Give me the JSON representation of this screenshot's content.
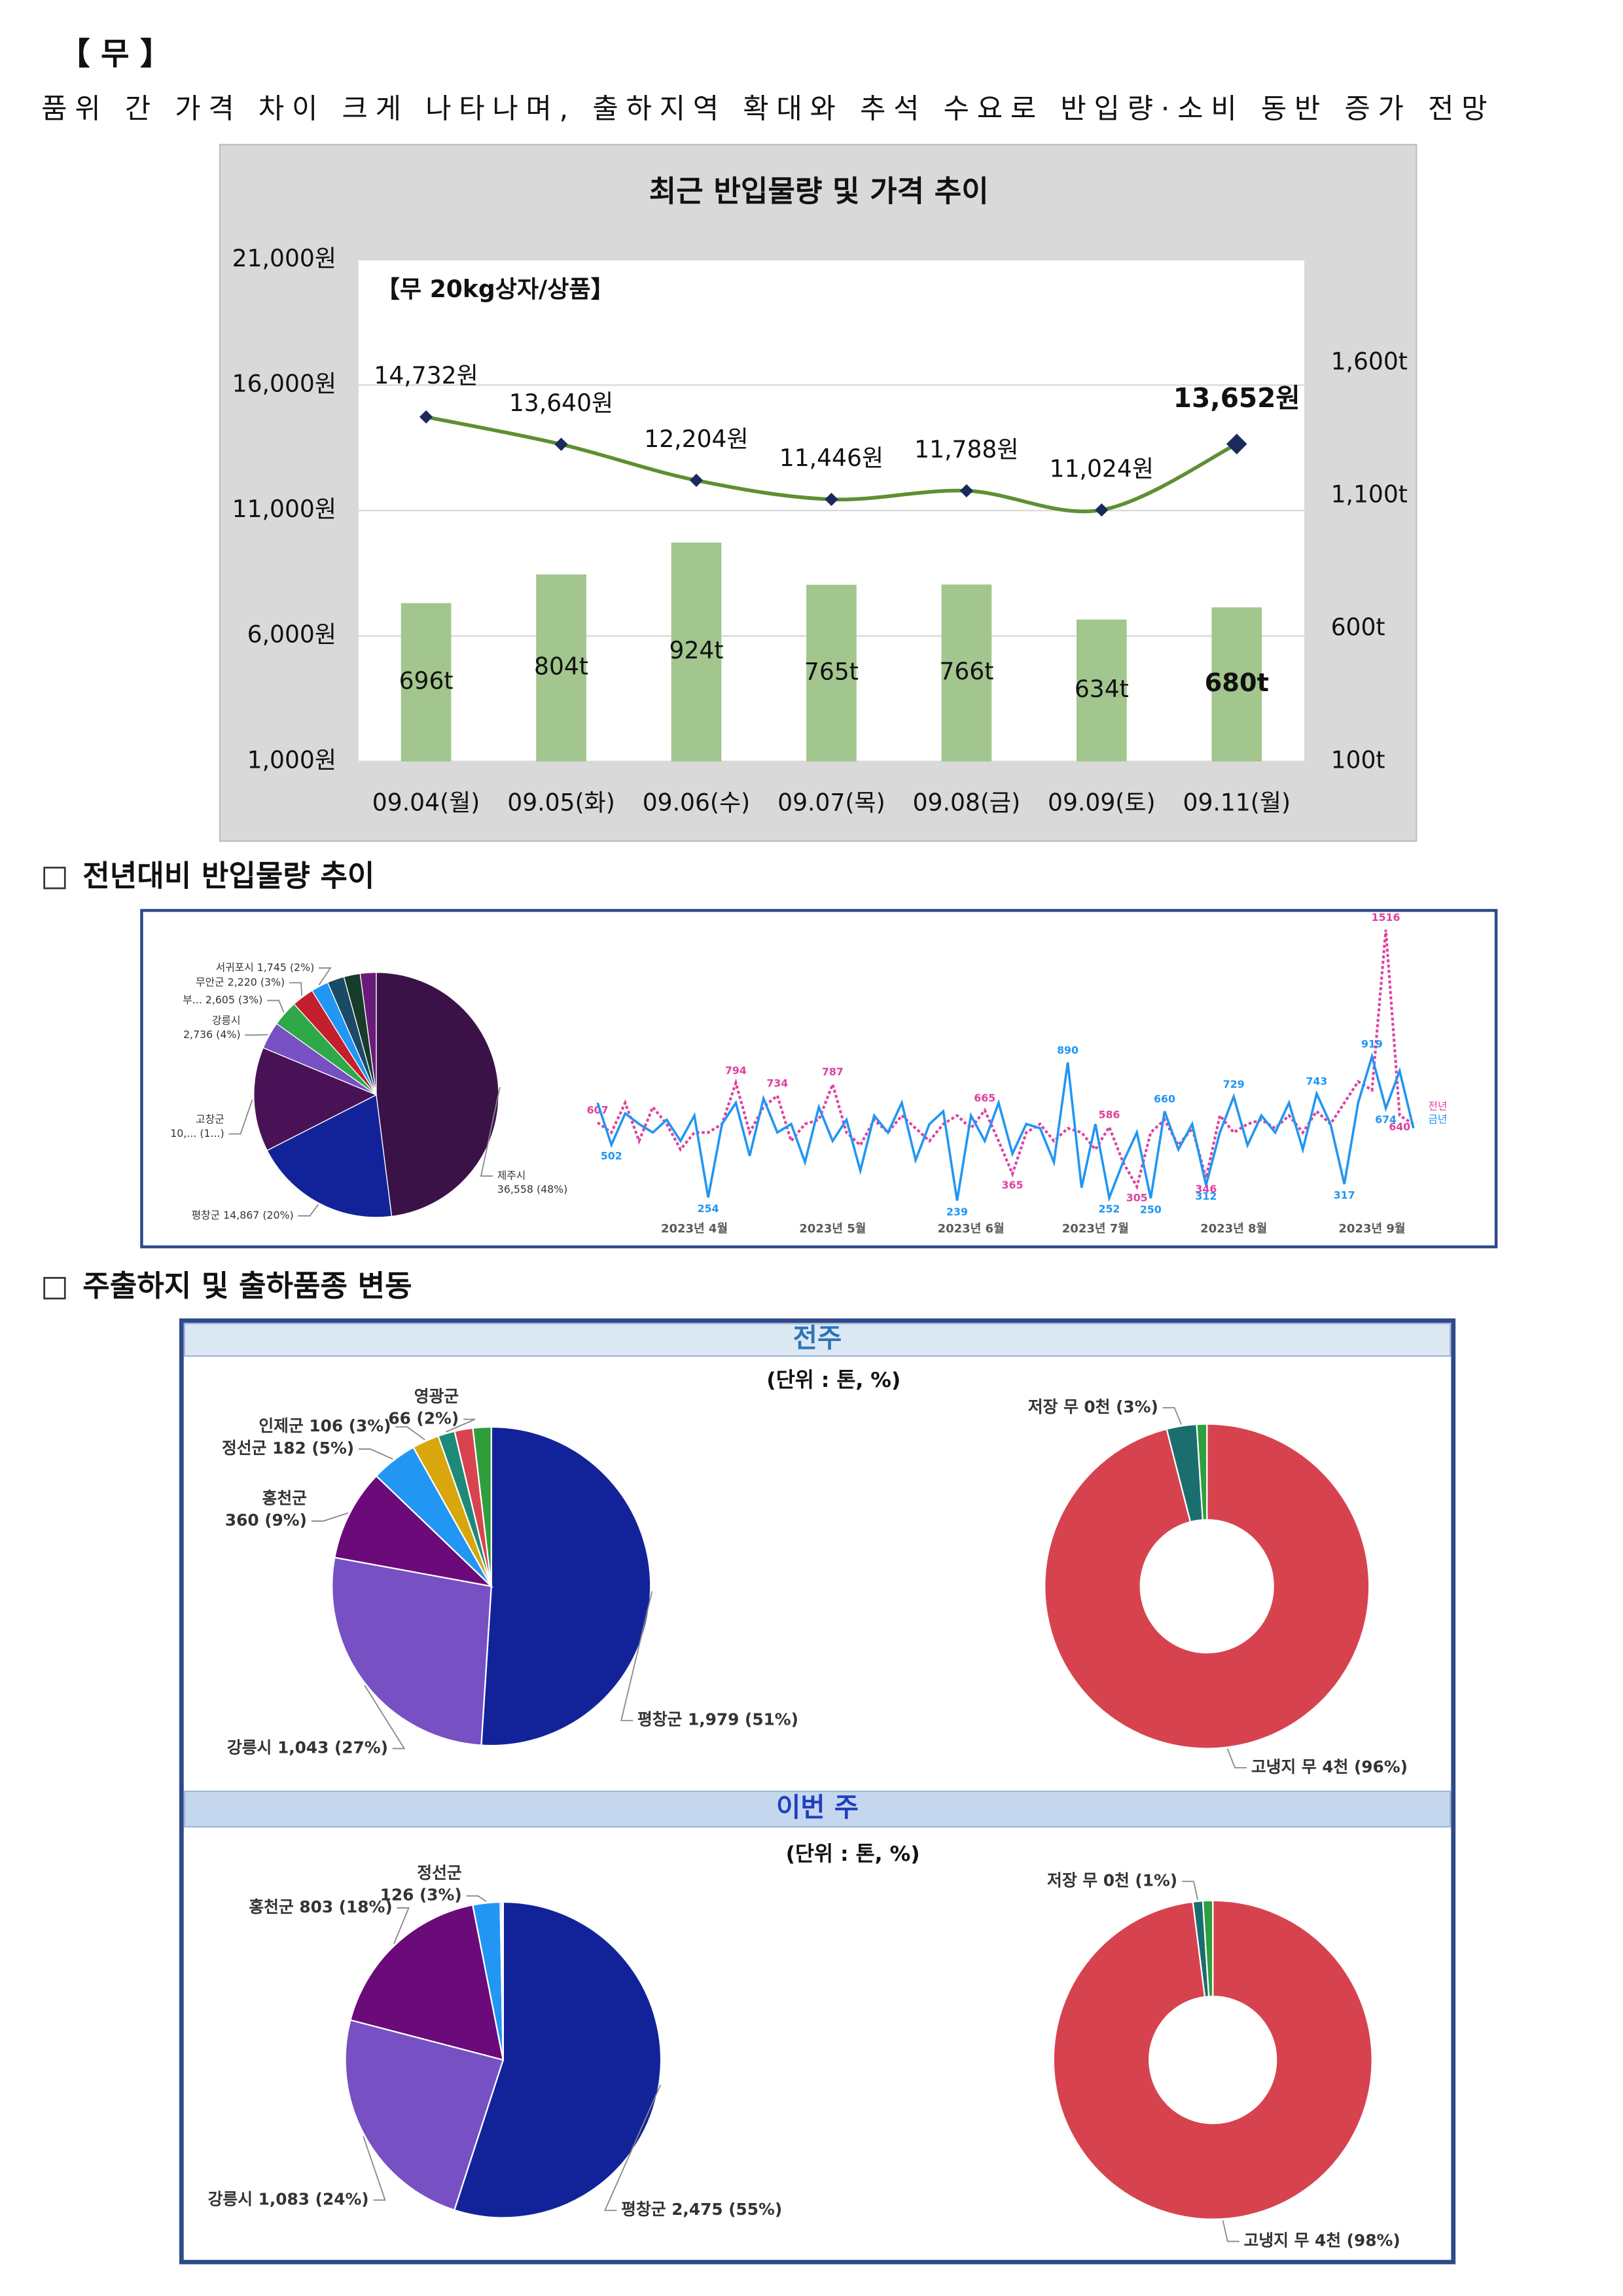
{
  "header": {
    "title": "【 무 】",
    "subtitle": "품위 간 가격 차이 크게 나타나며, 출하지역 확대와 추석 수요로 반입량·소비 동반 증가 전망"
  },
  "sections": [
    "전년대비 반입물량 추이",
    "주출하지 및 출하품종 변동"
  ],
  "panels": [
    {
      "title": "전주",
      "unit": "(단위 : 톤, %)"
    },
    {
      "title": "이번 주",
      "unit": "(단위 : 톤, %)"
    }
  ],
  "chart_data": [
    {
      "type": "combo",
      "title": "최근 반입물량 및 가격 추이",
      "annotation": "【무 20kg상자/상품】",
      "categories": [
        "09.04(월)",
        "09.05(화)",
        "09.06(수)",
        "09.07(목)",
        "09.08(금)",
        "09.09(토)",
        "09.11(월)"
      ],
      "series": [
        {
          "type": "bar",
          "axis": "y2",
          "color": "#a2c68e",
          "values": [
            696,
            804,
            924,
            765,
            766,
            634,
            680
          ],
          "value_labels": [
            "696t",
            "804t",
            "924t",
            "765t",
            "766t",
            "634t",
            "680t"
          ]
        },
        {
          "type": "line",
          "color": "#5e8f32",
          "marker_color": "#1b2a5c",
          "values": [
            14732,
            13640,
            12204,
            11446,
            11788,
            11024,
            13652
          ],
          "value_labels": [
            "14,732원",
            "13,640원",
            "12,204원",
            "11,446원",
            "11,788원",
            "11,024원",
            "13,652원"
          ]
        }
      ],
      "ylim": [
        1000,
        21000
      ],
      "yticks": [
        {
          "value": 1000,
          "label": "1,000원"
        },
        {
          "value": 6000,
          "label": "6,000원"
        },
        {
          "value": 11000,
          "label": "11,000원"
        },
        {
          "value": 16000,
          "label": "16,000원"
        },
        {
          "value": 21000,
          "label": "21,000원"
        }
      ],
      "y2lim": [
        100,
        1989
      ],
      "y2ticks": [
        {
          "value": 100,
          "label": "100t"
        },
        {
          "value": 600,
          "label": "600t"
        },
        {
          "value": 1100,
          "label": "1,100t"
        },
        {
          "value": 1600,
          "label": "1,600t"
        }
      ],
      "grid": true,
      "emphasize_last": true
    },
    {
      "type": "pie",
      "labels": [
        [
          "제주시",
          "36,558 (48%)"
        ],
        [
          "평창군 14,867 (20%)"
        ],
        [
          "고창군",
          "10,... (1...)"
        ],
        [
          "강릉시",
          "2,736 (4%)"
        ],
        [
          "부... 2,605 (3%)"
        ],
        [
          "무안군 2,220 (3%)"
        ],
        [
          "서귀포시 1,745 (2%)"
        ],
        null,
        null,
        null
      ],
      "values": [
        36558,
        14867,
        10500,
        2736,
        2605,
        2220,
        1745,
        1700,
        1650,
        1600
      ],
      "colors": [
        "#3b1248",
        "#12239a",
        "#4a1256",
        "#7750c4",
        "#2fa84a",
        "#c41f2c",
        "#2196f3",
        "#1b4a66",
        "#173d2a",
        "#6a1b7a"
      ]
    },
    {
      "type": "line",
      "categories": [
        null,
        null,
        null,
        null,
        null,
        null,
        null,
        "2023년 4월",
        null,
        null,
        null,
        null,
        null,
        null,
        null,
        null,
        null,
        "2023년 5월",
        null,
        null,
        null,
        null,
        null,
        null,
        null,
        null,
        null,
        "2023년 6월",
        null,
        null,
        null,
        null,
        null,
        null,
        null,
        null,
        "2023년 7월",
        null,
        null,
        null,
        null,
        null,
        null,
        null,
        null,
        null,
        "2023년 8월",
        null,
        null,
        null,
        null,
        null,
        null,
        null,
        null,
        null,
        "2023년 9월",
        null,
        null,
        null
      ],
      "series": [
        {
          "name": "전년",
          "color": "#e0409f",
          "dash": true,
          "values": [
            607,
            560,
            700,
            520,
            680,
            600,
            480,
            560,
            560,
            600,
            794,
            560,
            680,
            734,
            520,
            600,
            620,
            787,
            560,
            500,
            620,
            560,
            640,
            580,
            520,
            600,
            640,
            580,
            665,
            520,
            365,
            560,
            600,
            520,
            580,
            560,
            480,
            586,
            420,
            305,
            560,
            620,
            500,
            580,
            346,
            640,
            560,
            600,
            620,
            580,
            640,
            560,
            660,
            600,
            700,
            800,
            760,
            1516,
            640,
            600
          ],
          "value_labels": [
            "607",
            null,
            null,
            null,
            null,
            null,
            null,
            null,
            null,
            null,
            "794",
            null,
            null,
            "734",
            null,
            null,
            null,
            "787",
            null,
            null,
            null,
            null,
            null,
            null,
            null,
            null,
            null,
            null,
            "665",
            null,
            "365",
            null,
            null,
            null,
            null,
            null,
            null,
            "586",
            null,
            "305",
            null,
            null,
            null,
            null,
            "346",
            null,
            null,
            null,
            null,
            null,
            null,
            null,
            null,
            null,
            null,
            null,
            null,
            "1516",
            "640",
            null
          ]
        },
        {
          "name": "금년",
          "color": "#2196f3",
          "dash": false,
          "values": [
            700,
            502,
            650,
            600,
            560,
            620,
            520,
            640,
            254,
            600,
            700,
            450,
            720,
            560,
            600,
            420,
            680,
            520,
            620,
            380,
            640,
            560,
            700,
            430,
            600,
            660,
            239,
            640,
            520,
            700,
            460,
            600,
            580,
            420,
            890,
            300,
            600,
            252,
            420,
            560,
            250,
            660,
            480,
            600,
            312,
            560,
            729,
            500,
            640,
            560,
            700,
            480,
            743,
            600,
            317,
            700,
            919,
            674,
            850,
            580
          ],
          "value_labels": [
            null,
            "502",
            null,
            null,
            null,
            null,
            null,
            null,
            "254",
            null,
            null,
            null,
            null,
            null,
            null,
            null,
            null,
            null,
            null,
            null,
            null,
            null,
            null,
            null,
            null,
            null,
            "239",
            null,
            null,
            null,
            null,
            null,
            null,
            null,
            "890",
            null,
            null,
            "252",
            null,
            null,
            "250",
            "660",
            null,
            null,
            "312",
            null,
            "729",
            null,
            null,
            null,
            null,
            null,
            "743",
            null,
            "317",
            null,
            "919",
            "674",
            null,
            null
          ]
        }
      ],
      "ylim": [
        0,
        1600
      ]
    },
    {
      "type": "pie",
      "labels": [
        [
          "평창군 1,979 (51%)"
        ],
        [
          "강릉시 1,043 (27%)"
        ],
        [
          "홍천군",
          "360 (9%)"
        ],
        [
          "정선군 182 (5%)"
        ],
        [
          "인제군 106 (3%)"
        ],
        [
          "영광군",
          "66 (2%)"
        ],
        null,
        null
      ],
      "values": [
        1979,
        1043,
        360,
        182,
        106,
        66,
        72,
        72
      ],
      "colors": [
        "#12239a",
        "#7750c4",
        "#6b0a79",
        "#2196f3",
        "#d8a60d",
        "#1e8a7a",
        "#d9434f",
        "#2f9d3c"
      ]
    },
    {
      "type": "donut",
      "labels": [
        [
          "고냉지 무 4천 (96%)"
        ],
        [
          "저장 무 0천 (3%)"
        ],
        null
      ],
      "values": [
        3725,
        116,
        39
      ],
      "colors": [
        "#d6434e",
        "#1b6e6e",
        "#2e9e3e"
      ]
    },
    {
      "type": "pie",
      "labels": [
        [
          "평창군 2,475 (55%)"
        ],
        [
          "강릉시 1,083 (24%)"
        ],
        [
          "홍천군 803 (18%)"
        ],
        [
          "정선군",
          "126 (3%)"
        ],
        null,
        null
      ],
      "values": [
        2475,
        1083,
        803,
        126,
        8,
        5
      ],
      "colors": [
        "#12239a",
        "#7750c4",
        "#6b0a79",
        "#2196f3",
        "#d9434f",
        "#e8731a"
      ]
    },
    {
      "type": "donut",
      "labels": [
        [
          "고냉지 무 4천 (98%)"
        ],
        [
          "저장 무 0천 (1%)"
        ],
        null
      ],
      "values": [
        4410,
        45,
        45
      ],
      "colors": [
        "#d6434e",
        "#1b6e6e",
        "#2e9e3e"
      ]
    }
  ]
}
